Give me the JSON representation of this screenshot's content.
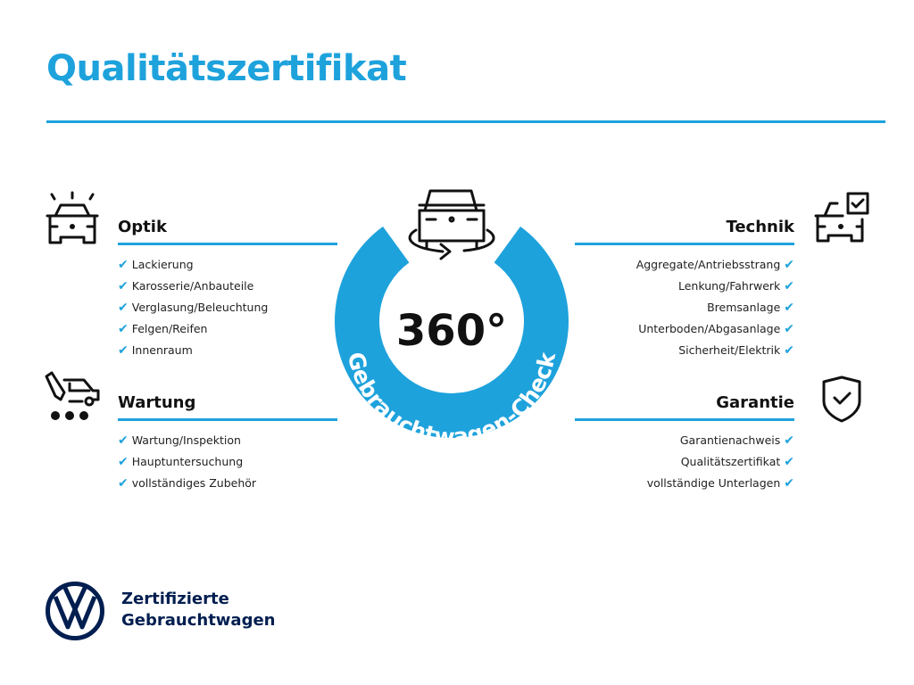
{
  "title": "Qualitätszertifikat",
  "accent_color": "#1ea2dc",
  "brand_color": "#001e50",
  "center": {
    "number": "360°",
    "ring_text": "Gebrauchtwagen-Check",
    "icon": "car-rotate-icon"
  },
  "sections": {
    "optik": {
      "heading": "Optik",
      "icon": "car-lights-icon",
      "items": [
        "Lackierung",
        "Karosserie/Anbauteile",
        "Verglasung/Beleuchtung",
        "Felgen/Reifen",
        "Innenraum"
      ]
    },
    "wartung": {
      "heading": "Wartung",
      "icon": "service-tools-icon",
      "items": [
        "Wartung/Inspektion",
        "Hauptuntersuchung",
        "vollständiges Zubehör"
      ]
    },
    "technik": {
      "heading": "Technik",
      "icon": "car-checklist-icon",
      "items": [
        "Aggregate/Antriebsstrang",
        "Lenkung/Fahrwerk",
        "Bremsanlage",
        "Unterboden/Abgasanlage",
        "Sicherheit/Elektrik"
      ]
    },
    "garantie": {
      "heading": "Garantie",
      "icon": "shield-check-icon",
      "items": [
        "Garantienachweis",
        "Qualitätszertifikat",
        "vollständige Unterlagen"
      ]
    }
  },
  "check_glyph": "✔",
  "footer": {
    "line1": "Zertifizierte",
    "line2": "Gebrauchtwagen",
    "logo": "VW"
  }
}
